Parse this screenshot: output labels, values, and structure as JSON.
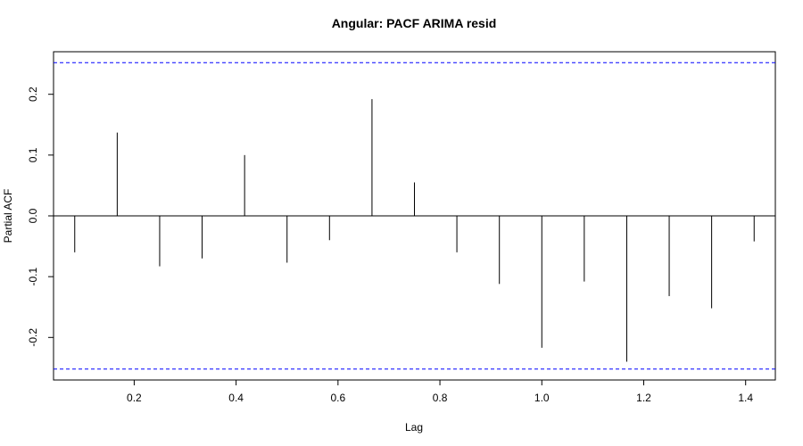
{
  "chart_data": {
    "type": "bar",
    "title": "Angular: PACF ARIMA resid",
    "xlabel": "Lag",
    "ylabel": "Partial ACF",
    "xlim": [
      0.0417,
      1.4583
    ],
    "ylim": [
      -0.27,
      0.27
    ],
    "x_ticks": [
      0.2,
      0.4,
      0.6,
      0.8,
      1.0,
      1.2,
      1.4
    ],
    "x_tick_labels": [
      "0.2",
      "0.4",
      "0.6",
      "0.8",
      "1.0",
      "1.2",
      "1.4"
    ],
    "y_ticks": [
      -0.2,
      -0.1,
      0.0,
      0.1,
      0.2
    ],
    "y_tick_labels": [
      "-0.2",
      "-0.1",
      "0.0",
      "0.1",
      "0.2"
    ],
    "confidence_bounds": [
      0.252,
      -0.252
    ],
    "confidence_color": "#0000ff",
    "bar_color": "#000000",
    "zero_line": true,
    "grid": false,
    "x": [
      0.0833,
      0.1667,
      0.25,
      0.3333,
      0.4167,
      0.5,
      0.5833,
      0.6667,
      0.75,
      0.8333,
      0.9167,
      1.0,
      1.0833,
      1.1667,
      1.25,
      1.3333,
      1.4167
    ],
    "values": [
      -0.06,
      0.137,
      -0.083,
      -0.07,
      0.1,
      -0.077,
      -0.04,
      0.192,
      0.055,
      -0.06,
      -0.112,
      -0.217,
      -0.108,
      -0.24,
      -0.132,
      -0.152,
      -0.042
    ]
  }
}
